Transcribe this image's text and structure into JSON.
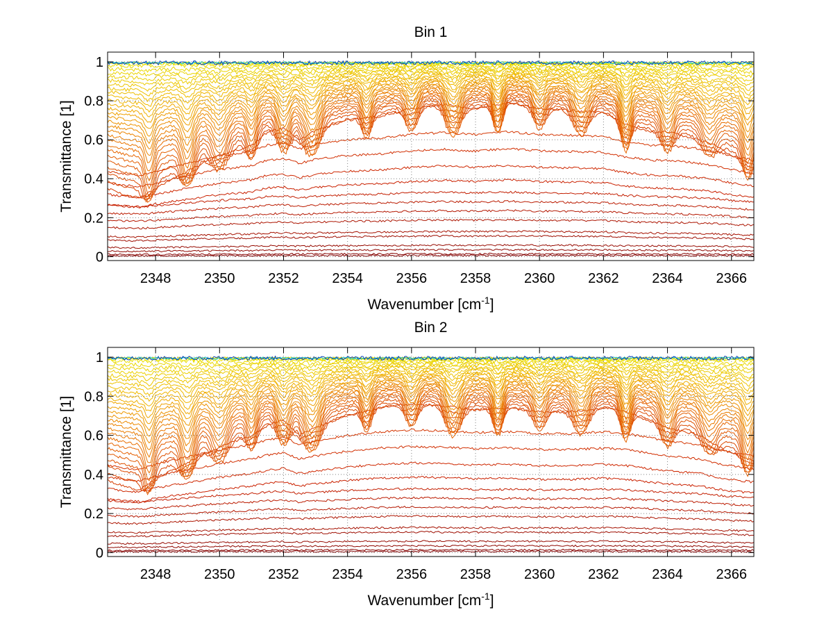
{
  "chart_data": [
    {
      "type": "line",
      "title": "Bin 1",
      "xlabel": "Wavenumber [cm",
      "xlabel_sup": "-1",
      "xlabel_end": "]",
      "ylabel": "Transmittance [1]",
      "xlim": [
        2346.5,
        2366.7
      ],
      "ylim": [
        -0.02,
        1.05
      ],
      "xticks": [
        2348,
        2350,
        2352,
        2354,
        2356,
        2358,
        2360,
        2362,
        2364,
        2366
      ],
      "yticks": [
        0,
        0.2,
        0.4,
        0.6,
        0.8,
        1
      ],
      "ytick_labels": [
        "0",
        "0.2",
        "0.4",
        "0.6",
        "0.8",
        "1"
      ],
      "grid": "dotted",
      "series_count": 42,
      "dip_centers": [
        2347.8,
        2349.0,
        2350.0,
        2351.0,
        2352.0,
        2352.9,
        2354.6,
        2356.0,
        2357.3,
        2358.7,
        2360.0,
        2361.3,
        2362.7,
        2364.0,
        2365.3,
        2366.5
      ],
      "envelope_x": [
        2346.5,
        2347.0,
        2347.5,
        2348.0,
        2349.0,
        2350.0,
        2351.0,
        2351.5,
        2352.0,
        2352.5,
        2353.0,
        2354.0,
        2355.0,
        2356.0,
        2357.0,
        2358.0,
        2359.0,
        2360.0,
        2361.0,
        2362.0,
        2362.7,
        2363.5,
        2364.0,
        2364.5,
        2365.0,
        2365.5,
        2366.0,
        2366.7
      ],
      "envelope_y": [
        0.33,
        0.3,
        0.28,
        0.33,
        0.42,
        0.5,
        0.55,
        0.62,
        0.64,
        0.58,
        0.63,
        0.68,
        0.7,
        0.74,
        0.76,
        0.74,
        0.77,
        0.74,
        0.73,
        0.72,
        0.66,
        0.62,
        0.62,
        0.6,
        0.58,
        0.55,
        0.5,
        0.45
      ]
    },
    {
      "type": "line",
      "title": "Bin 2",
      "xlabel": "Wavenumber [cm",
      "xlabel_sup": "-1",
      "xlabel_end": "]",
      "ylabel": "Transmittance [1]",
      "xlim": [
        2346.5,
        2366.7
      ],
      "ylim": [
        -0.02,
        1.05
      ],
      "xticks": [
        2348,
        2350,
        2352,
        2354,
        2356,
        2358,
        2360,
        2362,
        2364,
        2366
      ],
      "yticks": [
        0,
        0.2,
        0.4,
        0.6,
        0.8,
        1
      ],
      "ytick_labels": [
        "0",
        "0.2",
        "0.4",
        "0.6",
        "0.8",
        "1"
      ],
      "grid": "dotted",
      "series_count": 42,
      "dip_centers": [
        2347.8,
        2349.0,
        2350.0,
        2351.0,
        2352.0,
        2352.9,
        2354.6,
        2356.0,
        2357.3,
        2358.7,
        2360.0,
        2361.3,
        2362.7,
        2364.0,
        2365.3,
        2366.5
      ],
      "envelope_x": [
        2346.5,
        2347.0,
        2347.5,
        2348.0,
        2349.0,
        2350.0,
        2351.0,
        2351.5,
        2352.0,
        2352.5,
        2353.0,
        2354.0,
        2355.0,
        2356.0,
        2357.0,
        2358.0,
        2359.0,
        2360.0,
        2361.0,
        2362.0,
        2362.7,
        2363.5,
        2364.0,
        2364.5,
        2365.0,
        2365.5,
        2366.0,
        2366.7
      ],
      "envelope_y": [
        0.35,
        0.32,
        0.3,
        0.36,
        0.44,
        0.52,
        0.58,
        0.63,
        0.66,
        0.58,
        0.62,
        0.68,
        0.72,
        0.74,
        0.73,
        0.71,
        0.72,
        0.7,
        0.7,
        0.72,
        0.7,
        0.65,
        0.62,
        0.6,
        0.58,
        0.53,
        0.49,
        0.45
      ]
    }
  ],
  "colors": {
    "axis": "#000000",
    "grid": "#808080",
    "low_transmittance": "#800000",
    "mid_low": "#cc2200",
    "mid": "#e86a00",
    "high": "#f0b400",
    "near_one": "#e8e000",
    "noise_cyan": "#00c8d8",
    "noise_blue": "#0040c0"
  }
}
